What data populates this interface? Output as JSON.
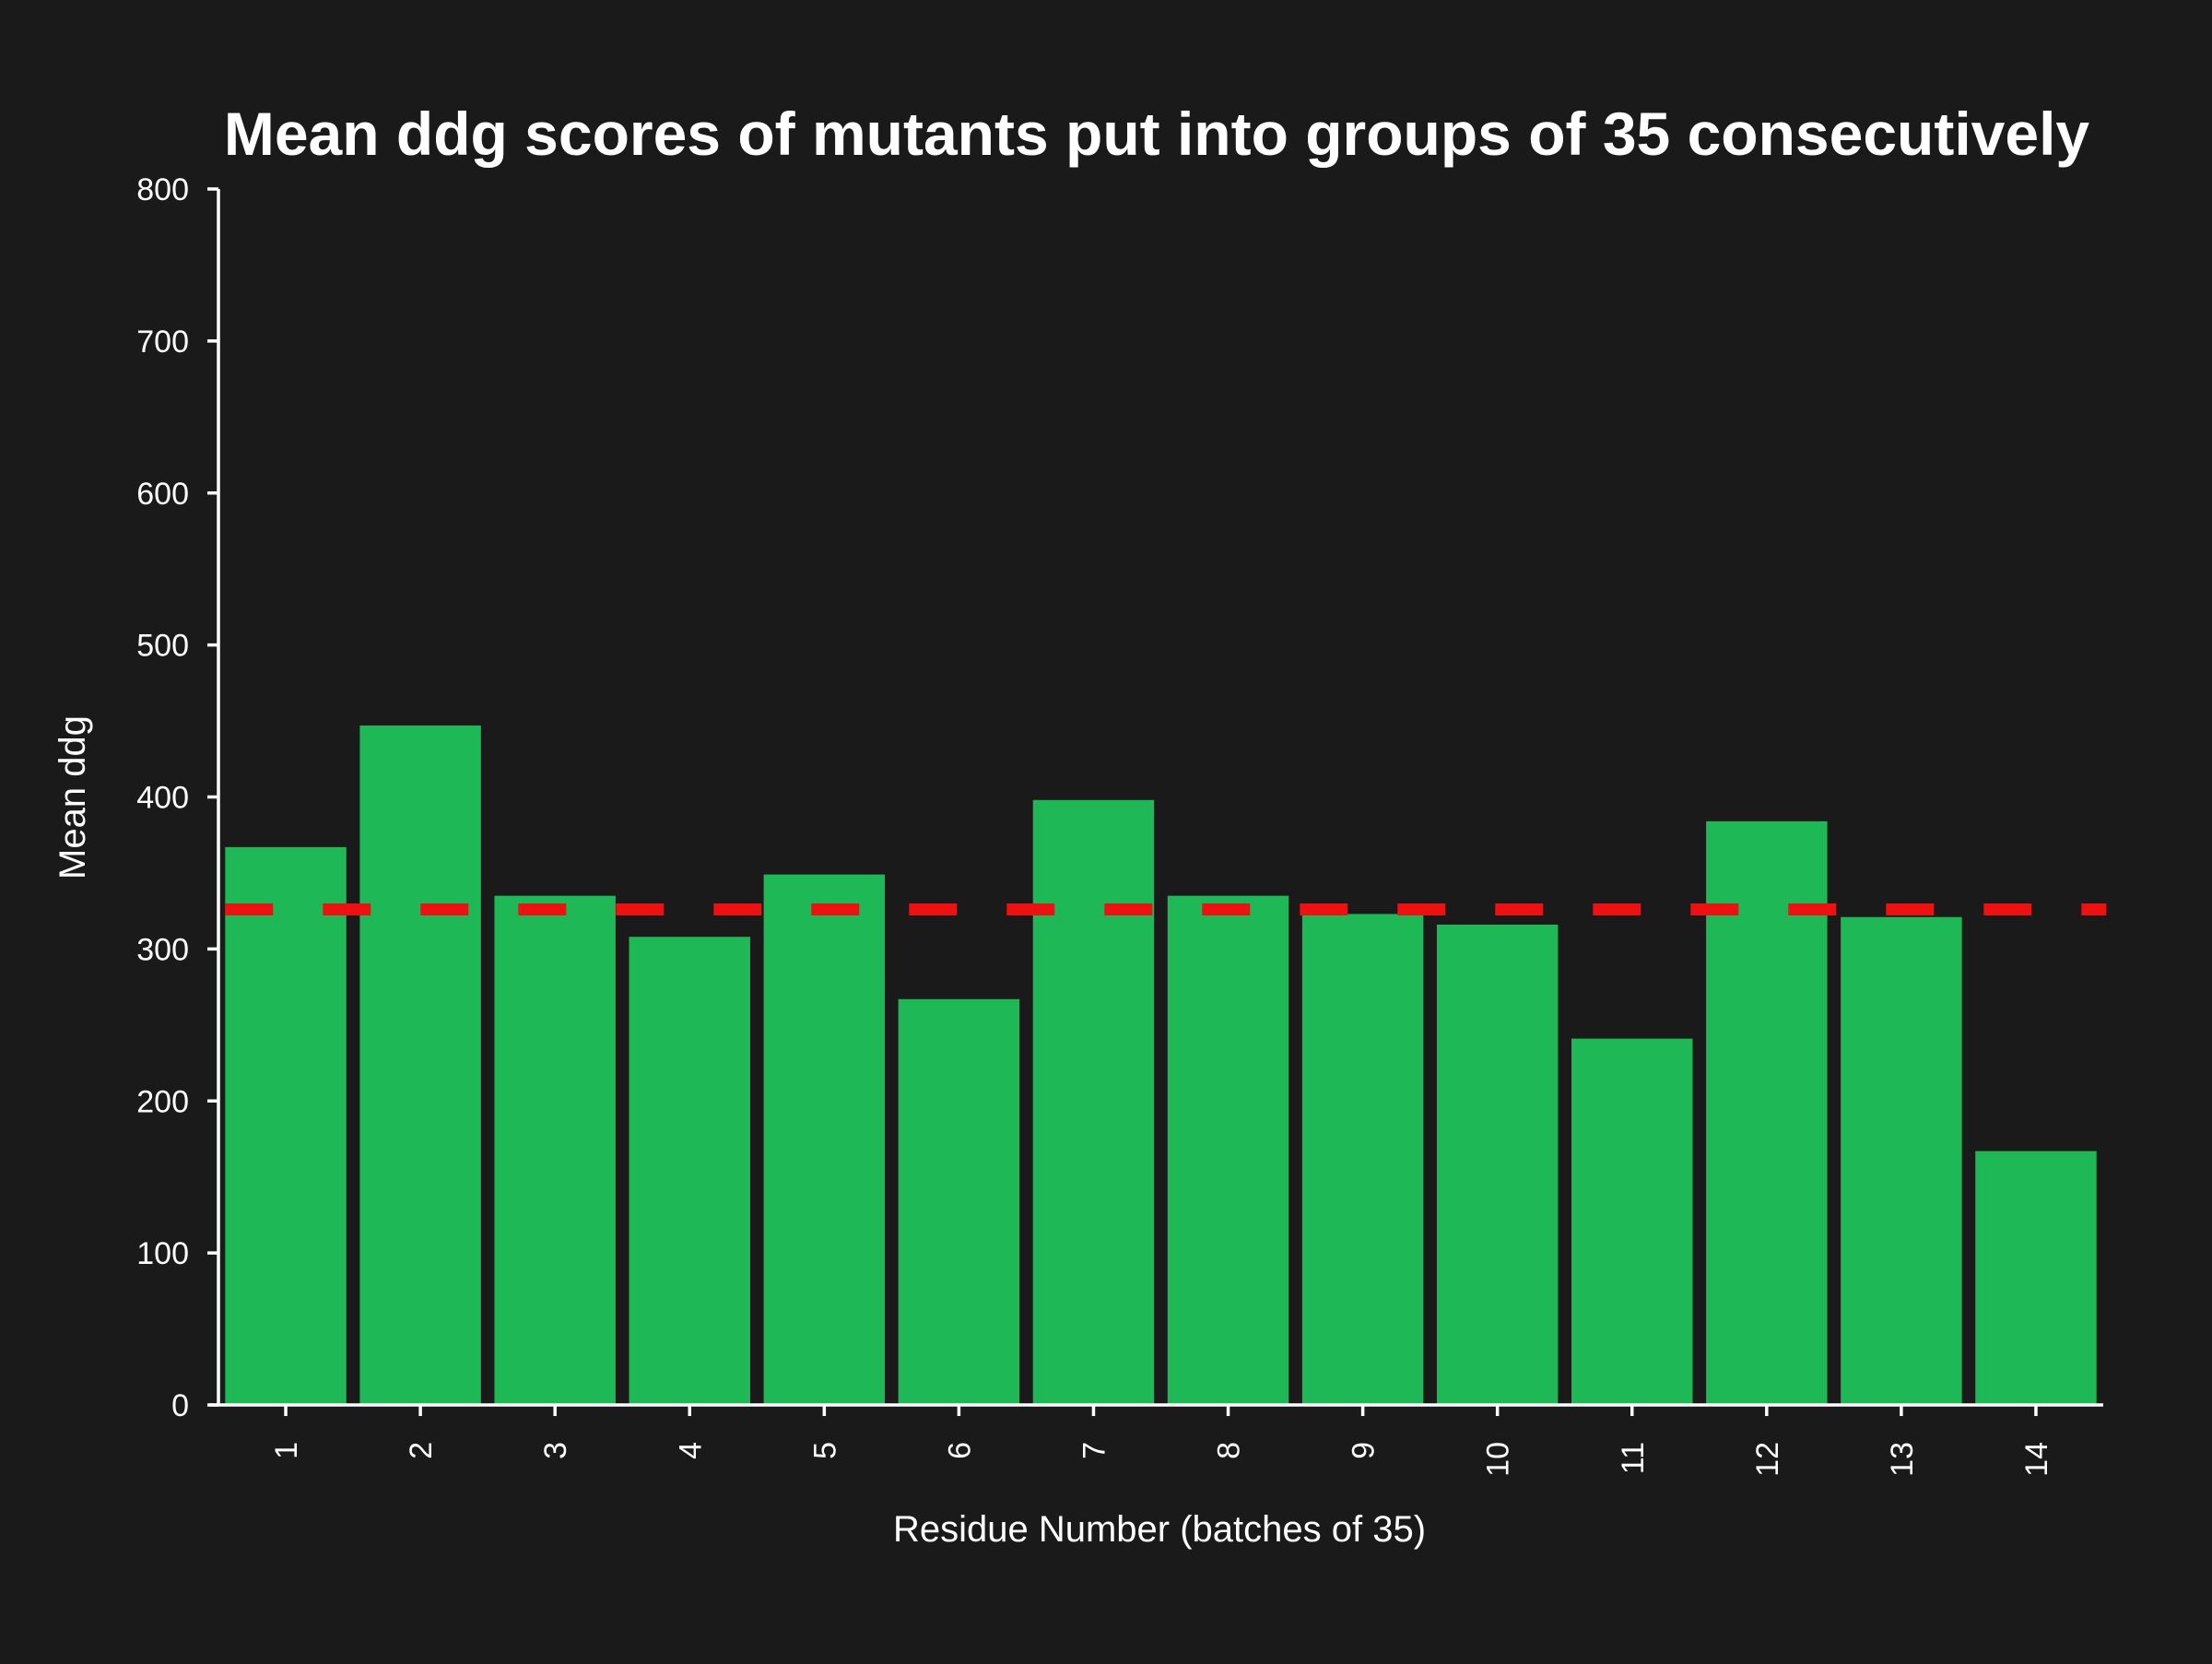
{
  "chart_data": {
    "type": "bar",
    "title": "Mean ddg scores of mutants put into groups of 35 consecutively",
    "xlabel": "Residue Number (batches of 35)",
    "ylabel": "Mean ddg",
    "categories": [
      "1",
      "2",
      "3",
      "4",
      "5",
      "6",
      "7",
      "8",
      "9",
      "10",
      "11",
      "12",
      "13",
      "14"
    ],
    "values": [
      367,
      447,
      335,
      308,
      349,
      267,
      398,
      335,
      323,
      316,
      241,
      384,
      321,
      167
    ],
    "ylim": [
      0,
      800
    ],
    "yticks": [
      0,
      100,
      200,
      300,
      400,
      500,
      600,
      700,
      800
    ],
    "reference_line": {
      "value": 326,
      "style": "dashed",
      "color": "#ee1111"
    },
    "bar_color": "#1fb857",
    "background_color": "#1a1a1a",
    "axis_color": "#ffffff",
    "grid": false,
    "legend": "none"
  }
}
